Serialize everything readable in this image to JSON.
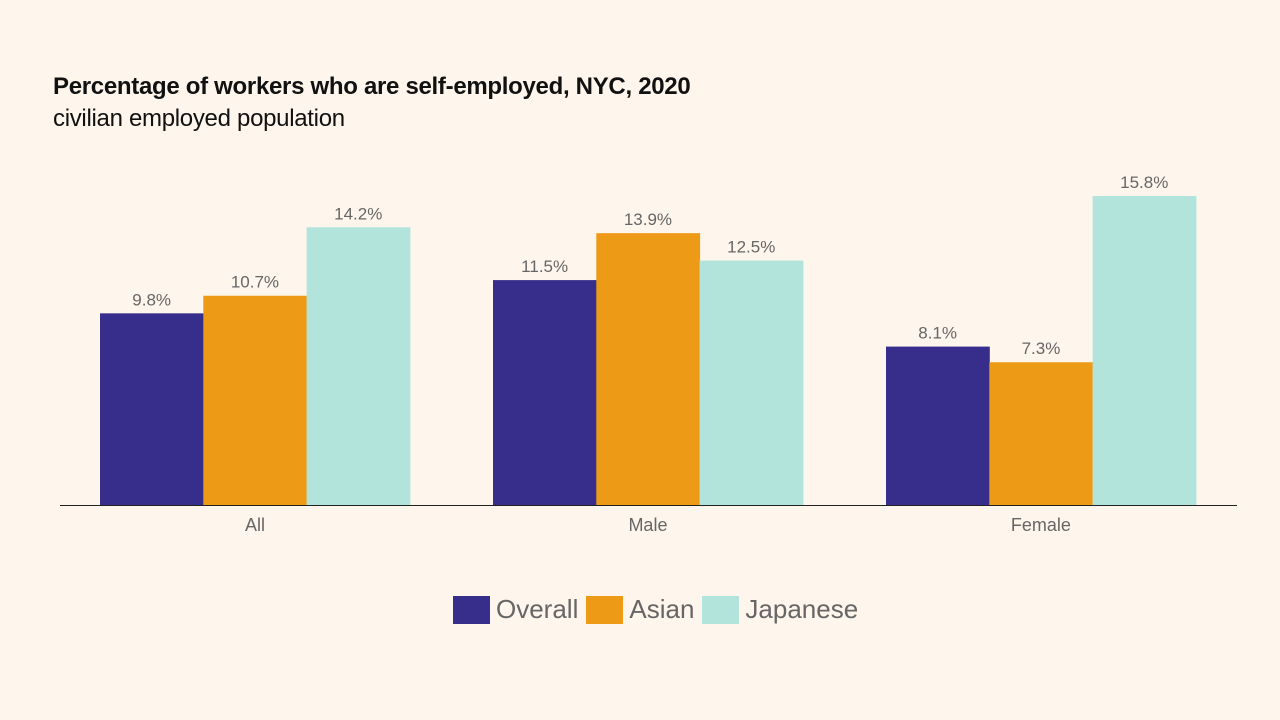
{
  "chart_data": {
    "type": "bar",
    "title": "Percentage of workers who are self-employed, NYC, 2020",
    "subtitle": "civilian employed population",
    "categories": [
      "All",
      "Male",
      "Female"
    ],
    "series": [
      {
        "name": "Overall",
        "color": "#372d8a",
        "values": [
          9.8,
          11.5,
          8.1
        ],
        "labels": [
          "9.8%",
          "11.5%",
          "8.1%"
        ]
      },
      {
        "name": "Asian",
        "color": "#ed9b16",
        "values": [
          10.7,
          13.9,
          7.3
        ],
        "labels": [
          "10.7%",
          "13.9%",
          "7.3%"
        ]
      },
      {
        "name": "Japanese",
        "color": "#b2e4dc",
        "values": [
          14.2,
          12.5,
          15.8
        ],
        "labels": [
          "14.2%",
          "12.5%",
          "15.8%"
        ]
      }
    ],
    "ylim": [
      0,
      15.8
    ],
    "grid": false,
    "legend": "bottom"
  }
}
